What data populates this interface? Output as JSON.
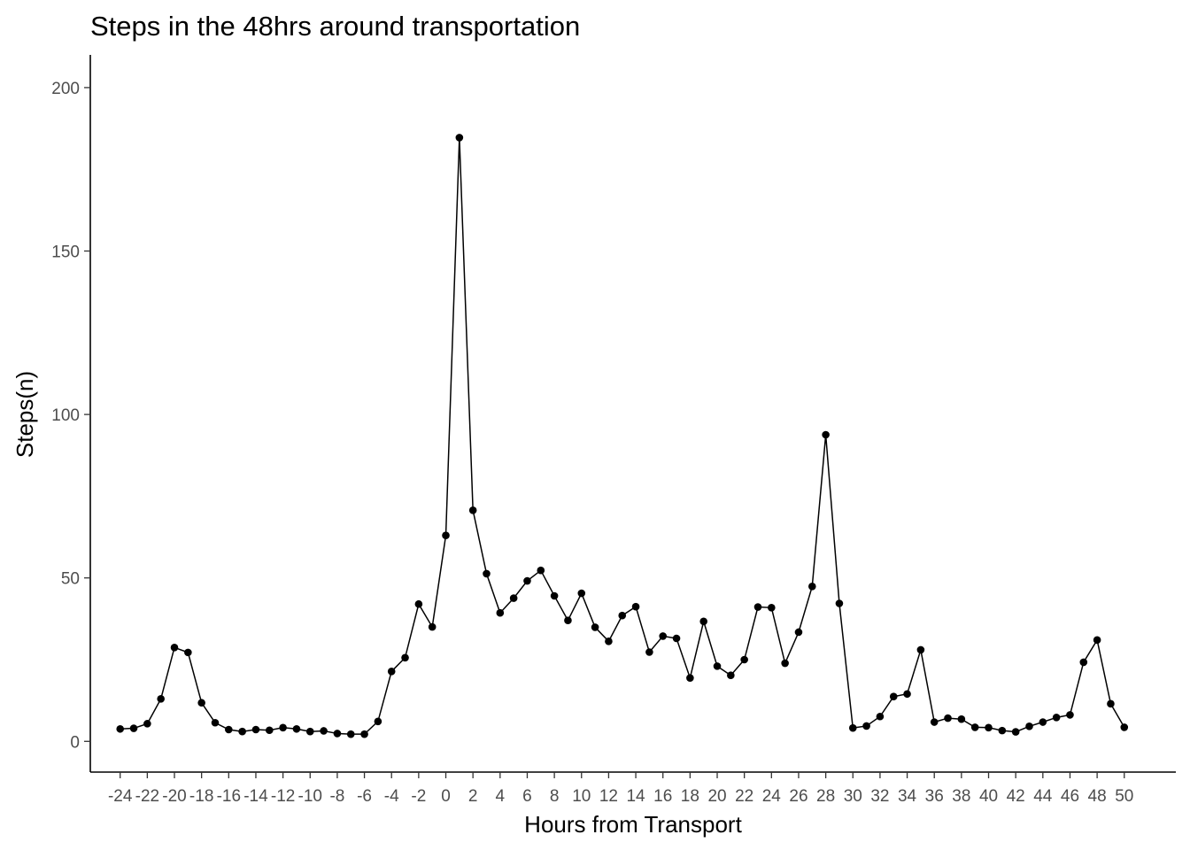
{
  "chart_data": {
    "type": "line",
    "title": "Steps in the 48hrs around transportation",
    "xlabel": "Hours from Transport",
    "ylabel": "Steps(n)",
    "xlim": [
      -26.2,
      53.8
    ],
    "ylim": [
      -9.4,
      210
    ],
    "grid": false,
    "legend": "none",
    "x_ticks": [
      -24,
      -22,
      -20,
      -18,
      -16,
      -14,
      -12,
      -10,
      -8,
      -6,
      -4,
      -2,
      0,
      2,
      4,
      6,
      8,
      10,
      12,
      14,
      16,
      18,
      20,
      22,
      24,
      26,
      28,
      30,
      32,
      34,
      36,
      38,
      40,
      42,
      44,
      46,
      48,
      50
    ],
    "y_ticks": [
      0,
      50,
      100,
      150,
      200
    ],
    "series": [
      {
        "x": [
          -24,
          -23,
          -22,
          -21,
          -20,
          -19,
          -18,
          -17,
          -16,
          -15,
          -14,
          -13,
          -12,
          -11,
          -10,
          -9,
          -8,
          -7,
          -6,
          -5,
          -4,
          -3,
          -2,
          -1,
          0,
          1,
          2,
          3,
          4,
          5,
          6,
          7,
          8,
          9,
          10,
          11,
          12,
          13,
          14,
          15,
          16,
          17,
          18,
          19,
          20,
          21,
          22,
          23,
          24,
          25,
          26,
          27,
          28,
          29,
          30,
          31,
          32,
          33,
          34,
          35,
          36,
          37,
          38,
          39,
          40,
          41,
          42,
          43,
          44,
          45,
          46,
          47,
          48,
          49,
          50
        ],
        "values": [
          3.8,
          4.0,
          5.4,
          13.0,
          28.7,
          27.2,
          11.8,
          5.7,
          3.6,
          3.0,
          3.6,
          3.4,
          4.2,
          3.8,
          3.0,
          3.2,
          2.4,
          2.2,
          2.2,
          6.1,
          21.4,
          25.6,
          42.0,
          35.0,
          63.0,
          184.7,
          70.7,
          51.3,
          39.3,
          43.8,
          49.1,
          52.3,
          44.5,
          37.0,
          45.3,
          34.9,
          30.6,
          38.5,
          41.2,
          27.3,
          32.2,
          31.5,
          19.4,
          36.7,
          23.0,
          20.2,
          25.0,
          41.1,
          40.9,
          23.9,
          33.4,
          47.4,
          93.8,
          42.2,
          4.1,
          4.7,
          7.6,
          13.7,
          14.5,
          28.0,
          5.9,
          7.1,
          6.8,
          4.3,
          4.2,
          3.3,
          2.9,
          4.6,
          5.9,
          7.3,
          8.1,
          24.2,
          31.0,
          11.5,
          4.3
        ],
        "color": "#000000"
      }
    ]
  }
}
